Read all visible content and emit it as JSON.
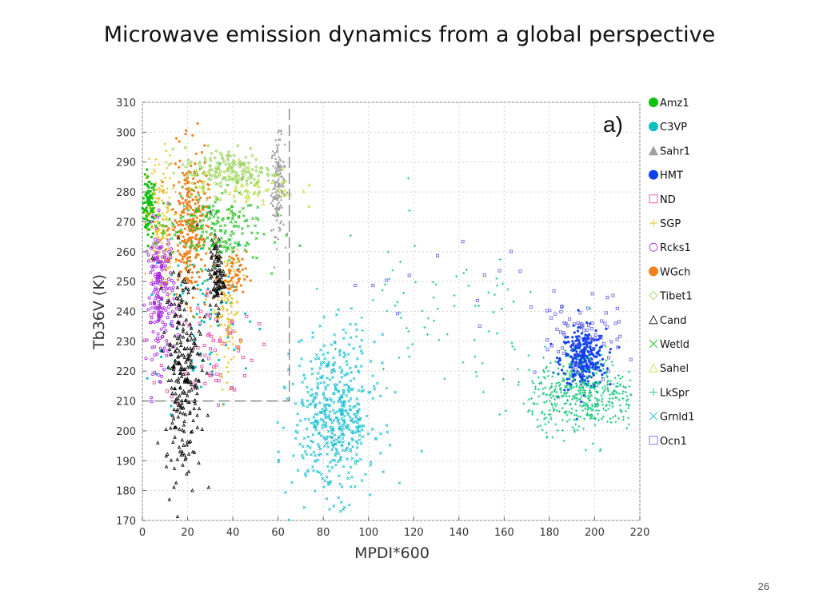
{
  "slide": {
    "title": "Microwave emission dynamics from a global perspective",
    "page_number": "26"
  },
  "chart_data": {
    "type": "scatter",
    "panel_label": "a)",
    "xlabel": "MPDI*600",
    "ylabel": "Tb36V (K)",
    "xlim": [
      0,
      220
    ],
    "ylim": [
      170,
      310
    ],
    "xticks": [
      0,
      20,
      40,
      60,
      80,
      100,
      120,
      140,
      160,
      180,
      200,
      220
    ],
    "yticks": [
      170,
      180,
      190,
      200,
      210,
      220,
      230,
      240,
      250,
      260,
      270,
      280,
      290,
      300,
      310
    ],
    "grid": true,
    "legend_position": "right",
    "annotation_box": {
      "x": [
        0,
        65
      ],
      "y": [
        210,
        310
      ]
    },
    "series": [
      {
        "name": "Amz1",
        "color": "#10c010",
        "marker": "filled-circle",
        "clusters": [
          {
            "cx": 3,
            "cy": 275,
            "sx": 1.5,
            "sy": 5,
            "n": 100
          }
        ]
      },
      {
        "name": "C3VP",
        "color": "#10c0c0",
        "marker": "filled-circle",
        "clusters": [
          {
            "cx": 25,
            "cy": 240,
            "sx": 12,
            "sy": 15,
            "n": 90
          }
        ]
      },
      {
        "name": "Sahr1",
        "color": "#a0a0a0",
        "marker": "filled-triangle",
        "clusters": [
          {
            "cx": 60,
            "cy": 282,
            "sx": 1.5,
            "sy": 8,
            "n": 160
          }
        ]
      },
      {
        "name": "HMT",
        "color": "#1040f0",
        "marker": "filled-circle",
        "clusters": [
          {
            "cx": 195,
            "cy": 224,
            "sx": 5,
            "sy": 5,
            "n": 320
          }
        ]
      },
      {
        "name": "ND",
        "color": "#e040a0",
        "marker": "open-square",
        "clusters": [
          {
            "cx": 30,
            "cy": 228,
            "sx": 10,
            "sy": 10,
            "n": 70
          }
        ]
      },
      {
        "name": "SGP",
        "color": "#e8c020",
        "marker": "plus",
        "clusters": [
          {
            "cx": 8,
            "cy": 268,
            "sx": 3,
            "sy": 12,
            "n": 180
          },
          {
            "cx": 37,
            "cy": 240,
            "sx": 3,
            "sy": 10,
            "n": 120
          }
        ]
      },
      {
        "name": "Rcks1",
        "color": "#a020e0",
        "marker": "open-circle",
        "clusters": [
          {
            "cx": 8,
            "cy": 245,
            "sx": 3,
            "sy": 12,
            "n": 200
          }
        ]
      },
      {
        "name": "WGch",
        "color": "#f08020",
        "marker": "filled-circle",
        "clusters": [
          {
            "cx": 21,
            "cy": 268,
            "sx": 4,
            "sy": 12,
            "n": 300
          },
          {
            "cx": 40,
            "cy": 252,
            "sx": 3,
            "sy": 4,
            "n": 60
          }
        ]
      },
      {
        "name": "Tibet1",
        "color": "#90d050",
        "marker": "open-diamond",
        "clusters": [
          {
            "cx": 38,
            "cy": 287,
            "sx": 10,
            "sy": 4,
            "n": 180
          }
        ]
      },
      {
        "name": "Cand",
        "color": "#000000",
        "marker": "open-triangle",
        "clusters": [
          {
            "cx": 18,
            "cy": 220,
            "sx": 4,
            "sy": 18,
            "n": 260
          },
          {
            "cx": 33,
            "cy": 252,
            "sx": 1.5,
            "sy": 6,
            "n": 100
          }
        ]
      },
      {
        "name": "Wetld",
        "color": "#20c020",
        "marker": "x",
        "clusters": [
          {
            "cx": 30,
            "cy": 268,
            "sx": 12,
            "sy": 6,
            "n": 200
          }
        ]
      },
      {
        "name": "Sahel",
        "color": "#c0e040",
        "marker": "open-triangle",
        "clusters": [
          {
            "cx": 45,
            "cy": 282,
            "sx": 12,
            "sy": 4,
            "n": 60
          }
        ]
      },
      {
        "name": "LkSpr",
        "color": "#20c880",
        "marker": "plus",
        "clusters": [
          {
            "cx": 195,
            "cy": 212,
            "sx": 12,
            "sy": 6,
            "n": 450
          },
          {
            "cx": 130,
            "cy": 235,
            "sx": 30,
            "sy": 15,
            "n": 80
          }
        ]
      },
      {
        "name": "Grnld1",
        "color": "#20c0d0",
        "marker": "x",
        "clusters": [
          {
            "cx": 85,
            "cy": 205,
            "sx": 9,
            "sy": 13,
            "n": 520
          }
        ]
      },
      {
        "name": "Ocn1",
        "color": "#6060e0",
        "marker": "open-square",
        "clusters": [
          {
            "cx": 193,
            "cy": 232,
            "sx": 10,
            "sy": 7,
            "n": 70
          },
          {
            "cx": 135,
            "cy": 252,
            "sx": 25,
            "sy": 7,
            "n": 14
          }
        ]
      }
    ]
  }
}
